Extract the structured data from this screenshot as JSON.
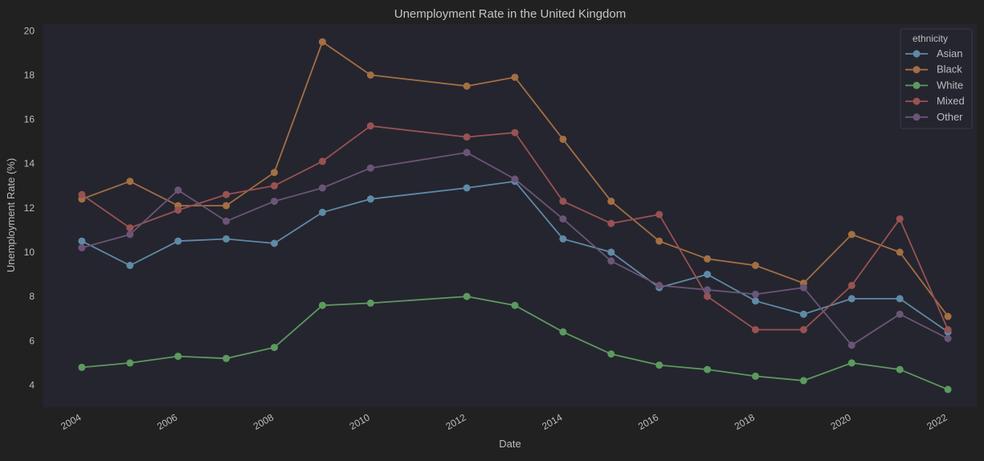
{
  "chart_data": {
    "type": "line",
    "title": "Unemployment Rate in the United Kingdom",
    "xlabel": "Date",
    "ylabel": "Unemployment Rate (%)",
    "xlim": [
      2003.2,
      2022.6
    ],
    "ylim": [
      3.0,
      20.3
    ],
    "xticks": [
      2004,
      2006,
      2008,
      2010,
      2012,
      2014,
      2016,
      2018,
      2020,
      2022
    ],
    "yticks": [
      4,
      6,
      8,
      10,
      12,
      14,
      16,
      18,
      20
    ],
    "grid": false,
    "legend": {
      "title": "ethnicity",
      "placement": "top-right"
    },
    "x": [
      2004,
      2005,
      2006,
      2007,
      2008,
      2009,
      2010,
      2012,
      2013,
      2014,
      2015,
      2016,
      2017,
      2018,
      2019,
      2020,
      2021,
      2022
    ],
    "series": [
      {
        "name": "Asian",
        "color": "#5f8aa6",
        "values": [
          10.5,
          9.4,
          10.5,
          10.6,
          10.4,
          11.8,
          12.4,
          12.9,
          13.2,
          10.6,
          10.0,
          8.4,
          9.0,
          7.8,
          7.2,
          7.9,
          7.9,
          6.4
        ]
      },
      {
        "name": "Black",
        "color": "#a36f43",
        "values": [
          12.4,
          13.2,
          12.1,
          12.1,
          13.6,
          19.5,
          18.0,
          17.5,
          17.9,
          15.1,
          12.3,
          10.5,
          9.7,
          9.4,
          8.6,
          10.8,
          10.0,
          7.1
        ]
      },
      {
        "name": "White",
        "color": "#5c9a5e",
        "values": [
          4.8,
          5.0,
          5.3,
          5.2,
          5.7,
          7.6,
          7.7,
          8.0,
          7.6,
          6.4,
          5.4,
          4.9,
          4.7,
          4.4,
          4.2,
          5.0,
          4.7,
          3.8
        ]
      },
      {
        "name": "Mixed",
        "color": "#985252",
        "values": [
          12.6,
          11.1,
          11.9,
          12.6,
          13.0,
          14.1,
          15.7,
          15.2,
          15.4,
          12.3,
          11.3,
          11.7,
          8.0,
          6.5,
          6.5,
          8.5,
          11.5,
          6.5
        ]
      },
      {
        "name": "Other",
        "color": "#6b5577",
        "values": [
          10.2,
          10.8,
          12.8,
          11.4,
          12.3,
          12.9,
          13.8,
          14.5,
          13.3,
          11.5,
          9.6,
          8.5,
          8.3,
          8.1,
          8.4,
          5.8,
          7.2,
          6.1
        ]
      }
    ]
  }
}
